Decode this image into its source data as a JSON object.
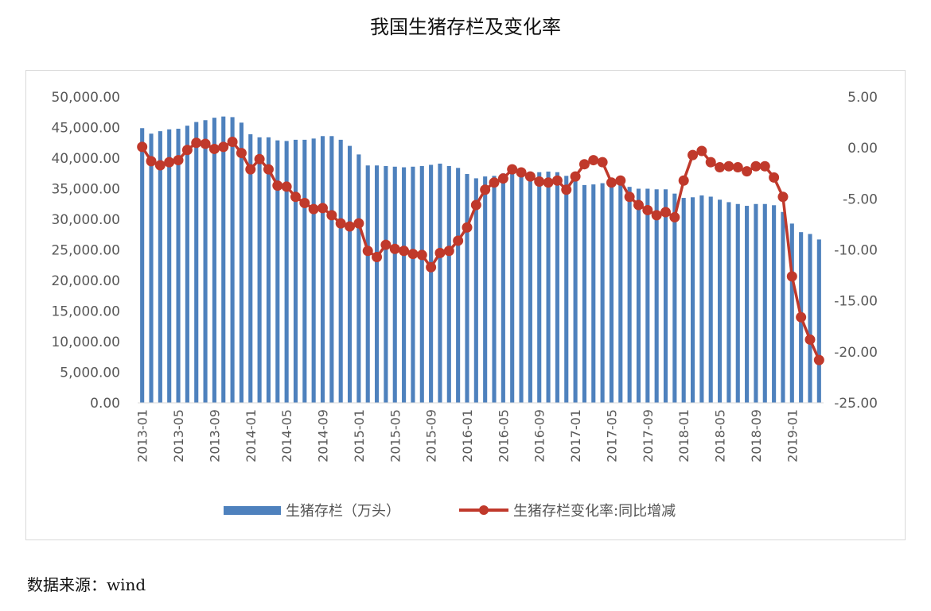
{
  "chart_data": {
    "type": "bar+line",
    "title": "我国生猪存栏及变化率",
    "categories": [
      "2013-01",
      "2013-02",
      "2013-03",
      "2013-04",
      "2013-05",
      "2013-06",
      "2013-07",
      "2013-08",
      "2013-09",
      "2013-10",
      "2013-11",
      "2013-12",
      "2014-01",
      "2014-02",
      "2014-03",
      "2014-04",
      "2014-05",
      "2014-06",
      "2014-07",
      "2014-08",
      "2014-09",
      "2014-10",
      "2014-11",
      "2014-12",
      "2015-01",
      "2015-02",
      "2015-03",
      "2015-04",
      "2015-05",
      "2015-06",
      "2015-07",
      "2015-08",
      "2015-09",
      "2015-10",
      "2015-11",
      "2015-12",
      "2016-01",
      "2016-02",
      "2016-03",
      "2016-04",
      "2016-05",
      "2016-06",
      "2016-07",
      "2016-08",
      "2016-09",
      "2016-10",
      "2016-11",
      "2016-12",
      "2017-01",
      "2017-02",
      "2017-03",
      "2017-04",
      "2017-05",
      "2017-06",
      "2017-07",
      "2017-08",
      "2017-09",
      "2017-10",
      "2017-11",
      "2017-12",
      "2018-01",
      "2018-02",
      "2018-03",
      "2018-04",
      "2018-05",
      "2018-06",
      "2018-07",
      "2018-08",
      "2018-09",
      "2018-10",
      "2018-11",
      "2018-12",
      "2019-01",
      "2019-02",
      "2019-03",
      "2019-04"
    ],
    "x_tick_labels": [
      "2013-01",
      "2013-05",
      "2013-09",
      "2014-01",
      "2014-05",
      "2014-09",
      "2015-01",
      "2015-05",
      "2015-09",
      "2016-01",
      "2016-05",
      "2016-09",
      "2017-01",
      "2017-05",
      "2017-09",
      "2018-01",
      "2018-05",
      "2018-09",
      "2019-01"
    ],
    "left_axis": {
      "ylim": [
        0,
        50000
      ],
      "ticks": [
        "0.00",
        "5,000.00",
        "10,000.00",
        "15,000.00",
        "20,000.00",
        "25,000.00",
        "30,000.00",
        "35,000.00",
        "40,000.00",
        "45,000.00",
        "50,000.00"
      ]
    },
    "right_axis": {
      "ylim": [
        -25,
        5
      ],
      "ticks": [
        "-25.00",
        "-20.00",
        "-15.00",
        "-10.00",
        "-5.00",
        "0.00",
        "5.00"
      ]
    },
    "series": [
      {
        "name": "生猪存栏（万头）",
        "type": "bar",
        "axis": "left",
        "color": "#4e81bd",
        "values": [
          44900,
          44000,
          44400,
          44700,
          44800,
          45300,
          45900,
          46200,
          46600,
          46800,
          46700,
          45800,
          43900,
          43400,
          43400,
          42900,
          42800,
          43000,
          43000,
          43200,
          43600,
          43600,
          43000,
          42000,
          40600,
          38800,
          38800,
          38700,
          38600,
          38500,
          38600,
          38700,
          38900,
          39100,
          38700,
          38400,
          37400,
          36700,
          37000,
          37100,
          37500,
          37700,
          37900,
          37800,
          37700,
          37800,
          37700,
          37100,
          36300,
          35600,
          35700,
          35900,
          36000,
          35800,
          35300,
          35000,
          35000,
          34900,
          34900,
          34200,
          33500,
          33600,
          33900,
          33700,
          33200,
          32800,
          32500,
          32200,
          32500,
          32500,
          32300,
          31200,
          29300,
          27900,
          27600,
          26700
        ]
      },
      {
        "name": "生猪存栏变化率:同比增减",
        "type": "line",
        "axis": "right",
        "color": "#c0392b",
        "values": [
          0.1,
          -1.3,
          -1.7,
          -1.4,
          -1.2,
          -0.2,
          0.5,
          0.4,
          -0.1,
          0.1,
          0.6,
          -0.5,
          -2.1,
          -1.1,
          -2.1,
          -3.7,
          -3.8,
          -4.8,
          -5.4,
          -6.0,
          -5.9,
          -6.6,
          -7.4,
          -7.7,
          -7.4,
          -10.1,
          -10.7,
          -9.5,
          -9.9,
          -10.1,
          -10.4,
          -10.5,
          -11.7,
          -10.3,
          -10.1,
          -9.1,
          -7.8,
          -5.6,
          -4.1,
          -3.4,
          -3.0,
          -2.1,
          -2.4,
          -2.8,
          -3.3,
          -3.4,
          -3.2,
          -4.1,
          -2.8,
          -1.6,
          -1.2,
          -1.4,
          -3.4,
          -3.2,
          -4.8,
          -5.6,
          -6.1,
          -6.6,
          -6.3,
          -6.8,
          -3.2,
          -0.7,
          -0.3,
          -1.4,
          -1.9,
          -1.8,
          -1.9,
          -2.3,
          -1.8,
          -1.8,
          -2.9,
          -4.8,
          -12.6,
          -16.6,
          -18.8,
          -20.8
        ]
      }
    ],
    "legend_placement": "bottom",
    "grid": false
  },
  "source_note": "数据来源：wind"
}
